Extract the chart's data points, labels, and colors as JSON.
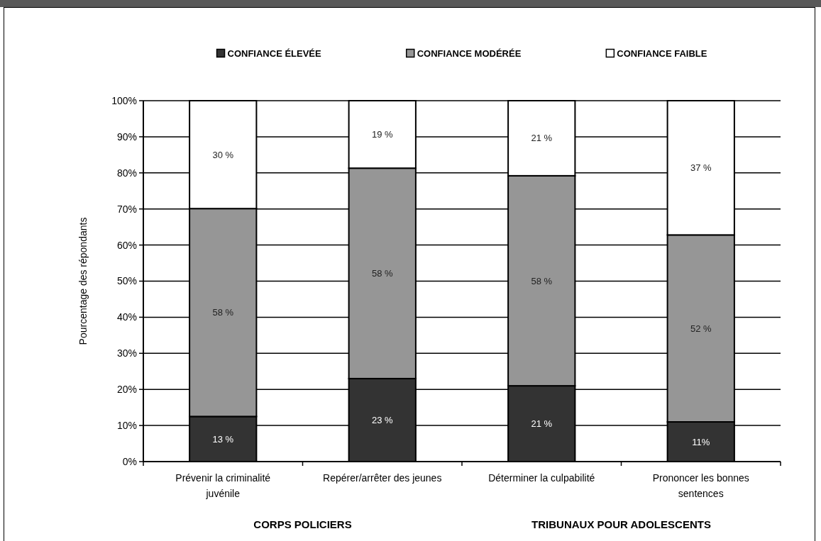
{
  "chart_data": {
    "type": "bar",
    "stacked": true,
    "categories": [
      "Prévenir la criminalité juvénile",
      "Repérer/arrêter des jeunes",
      "Déterminer la culpabilité",
      "Prononcer les bonnes sentences"
    ],
    "series": [
      {
        "name": "CONFIANCE ÉLEVÉE",
        "color": "#333333",
        "values": [
          12.5,
          23,
          21,
          11
        ],
        "value_labels": [
          "13 %",
          "23 %",
          "21 %",
          "11%"
        ]
      },
      {
        "name": "CONFIANCE MODÉRÉE",
        "color": "#969696",
        "values": [
          57.6,
          58.3,
          58.2,
          51.8
        ],
        "value_labels": [
          "58 %",
          "58 %",
          "58 %",
          "52 %"
        ]
      },
      {
        "name": "CONFIANCE FAIBLE",
        "color": "#ffffff",
        "values": [
          29.9,
          18.7,
          20.8,
          37.2
        ],
        "value_labels": [
          "30 %",
          "19 %",
          "21 %",
          "37 %"
        ]
      }
    ],
    "ylabel": "Pourcentage des répondants",
    "ylim": [
      0,
      100
    ],
    "yticks": [
      {
        "value": 0,
        "label": "0%"
      },
      {
        "value": 10,
        "label": "10%"
      },
      {
        "value": 20,
        "label": "20%"
      },
      {
        "value": 30,
        "label": "30%"
      },
      {
        "value": 40,
        "label": "40%"
      },
      {
        "value": 50,
        "label": "50%"
      },
      {
        "value": 60,
        "label": "60%"
      },
      {
        "value": 70,
        "label": "70%"
      },
      {
        "value": 80,
        "label": "80%"
      },
      {
        "value": 90,
        "label": "90%"
      },
      {
        "value": 100,
        "label": "100%"
      }
    ],
    "grid": "y",
    "legend": "top",
    "annotations": [
      "CORPS POLICIERS",
      "TRIBUNAUX POUR ADOLESCENTS"
    ]
  }
}
